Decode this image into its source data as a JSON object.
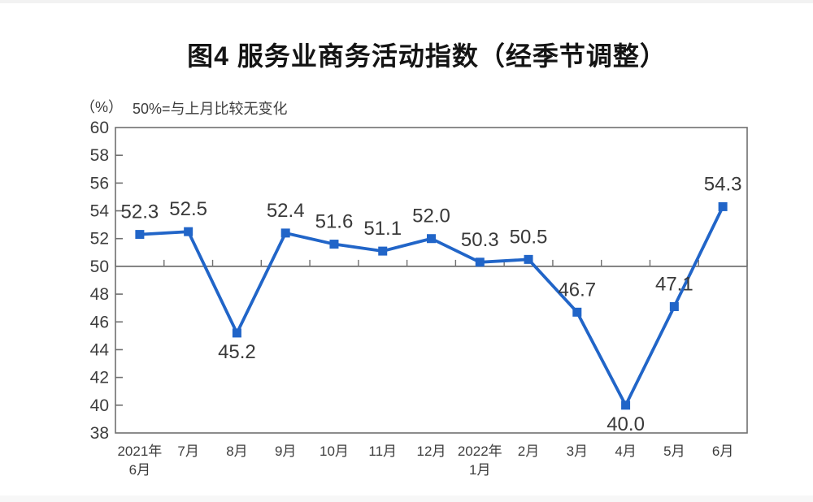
{
  "header": {
    "title": "图4 服务业商务活动指数（经季节调整）"
  },
  "chart_data": {
    "type": "line",
    "title": "图4 服务业商务活动指数（经季节调整）",
    "unit_label": "（%）",
    "note": "50%=与上月比较无变化",
    "categories": [
      "2021年\n6月",
      "7月",
      "8月",
      "9月",
      "10月",
      "11月",
      "12月",
      "2022年\n1月",
      "2月",
      "3月",
      "4月",
      "5月",
      "6月"
    ],
    "values": [
      52.3,
      52.5,
      45.2,
      52.4,
      51.6,
      51.1,
      52.0,
      50.3,
      50.5,
      46.7,
      40.0,
      47.1,
      54.3
    ],
    "value_labels": [
      "52.3",
      "52.5",
      "45.2",
      "52.4",
      "51.6",
      "51.1",
      "52.0",
      "50.3",
      "50.5",
      "46.7",
      "40.0",
      "47.1",
      "54.3"
    ],
    "labels_below_indices": [
      2,
      10
    ],
    "ylim": [
      38,
      60
    ],
    "ytick_step": 2,
    "reference_line": 50,
    "grid": false,
    "legend": "none",
    "colors": {
      "line": "#2165c8",
      "marker": "#2165c8",
      "axis": "#707070",
      "axis_text": "#3d3d3d",
      "data_label": "#393939",
      "title": "#141414"
    }
  }
}
